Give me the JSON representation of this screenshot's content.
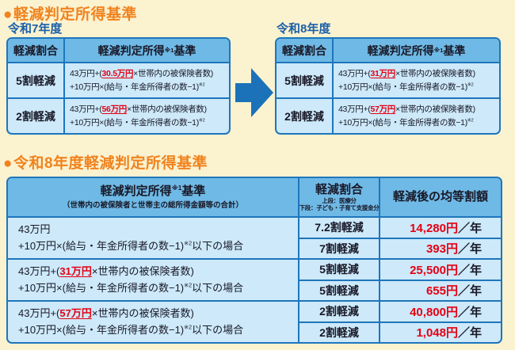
{
  "colors": {
    "background": "#FBF2D0",
    "accent_orange": "#F0831E",
    "year_blue": "#1A5FA8",
    "table_border": "#1E76BC",
    "header_bg": "#6FB9E6",
    "cell_bg": "#CDE9FA",
    "highlight_red": "#E60012"
  },
  "icons": {
    "bullet": "●",
    "arrow_right": "block-arrow-right"
  },
  "section_top": {
    "bullet": "●",
    "heading": "軽減判定所得基準",
    "tables": [
      {
        "year": "令和7年度",
        "headers": {
          "rate": "軽減割合",
          "criteria": [
            {
              "t": "軽減判定所得"
            },
            {
              "t": "※1",
              "c": "sup"
            },
            {
              "t": "基準"
            }
          ]
        },
        "rows": [
          {
            "rate": "5割軽減",
            "line1": [
              {
                "t": "43万円+("
              },
              {
                "t": "30.5万円",
                "c": "red u"
              },
              {
                "t": "×世帯内の被保険者数)"
              }
            ],
            "line2": [
              {
                "t": "+10万円×(給与・年金所得者の数−1)"
              },
              {
                "t": "※2",
                "c": "sup"
              }
            ]
          },
          {
            "rate": "2割軽減",
            "line1": [
              {
                "t": "43万円+("
              },
              {
                "t": "56万円",
                "c": "red u"
              },
              {
                "t": "×世帯内の被保険者数)"
              }
            ],
            "line2": [
              {
                "t": "+10万円×(給与・年金所得者の数−1)"
              },
              {
                "t": "※2",
                "c": "sup"
              }
            ]
          }
        ]
      },
      {
        "year": "令和8年度",
        "headers": {
          "rate": "軽減割合",
          "criteria": [
            {
              "t": "軽減判定所得"
            },
            {
              "t": "※1",
              "c": "sup"
            },
            {
              "t": "基準"
            }
          ]
        },
        "rows": [
          {
            "rate": "5割軽減",
            "line1": [
              {
                "t": "43万円+("
              },
              {
                "t": "31万円",
                "c": "red u"
              },
              {
                "t": "×世帯内の被保険者数)"
              }
            ],
            "line2": [
              {
                "t": "+10万円×(給与・年金所得者の数−1)"
              },
              {
                "t": "※2",
                "c": "sup"
              }
            ]
          },
          {
            "rate": "2割軽減",
            "line1": [
              {
                "t": "43万円+("
              },
              {
                "t": "57万円",
                "c": "red u"
              },
              {
                "t": "×世帯内の被保険者数)"
              }
            ],
            "line2": [
              {
                "t": "+10万円×(給与・年金所得者の数−1)"
              },
              {
                "t": "※2",
                "c": "sup"
              }
            ]
          }
        ]
      }
    ]
  },
  "section_bottom": {
    "bullet": "●",
    "heading": "令和8年度軽減判定所得基準",
    "header": {
      "criteria_title": [
        {
          "t": "軽減判定所得"
        },
        {
          "t": "※1",
          "c": "sup"
        },
        {
          "t": "基準"
        }
      ],
      "criteria_sub": "（世帯内の被保険者と世帯主の総所得金額等の合計）",
      "rate_title": "軽減割合",
      "rate_sub1": "上段：医療分",
      "rate_sub2": "下段：子ども・子育て支援金分",
      "amount_title": "軽減後の均等割額"
    },
    "groups": [
      {
        "line1": [
          {
            "t": "43万円"
          }
        ],
        "line2": [
          {
            "t": "+10万円×(給与・年金所得者の数−1)"
          },
          {
            "t": "※2",
            "c": "sup"
          },
          {
            "t": "以下の場合"
          }
        ],
        "subrows": [
          {
            "rate": "7.2割軽減",
            "amount": [
              {
                "t": "14,280円",
                "c": "red"
              },
              {
                "t": "／年"
              }
            ]
          },
          {
            "rate": "7割軽減",
            "amount": [
              {
                "t": "393円",
                "c": "red"
              },
              {
                "t": "／年"
              }
            ]
          }
        ]
      },
      {
        "line1": [
          {
            "t": "43万円+("
          },
          {
            "t": "31万円",
            "c": "red u"
          },
          {
            "t": "×世帯内の被保険者数)"
          }
        ],
        "line2": [
          {
            "t": "+10万円×(給与・年金所得者の数−1)"
          },
          {
            "t": "※2",
            "c": "sup"
          },
          {
            "t": "以下の場合"
          }
        ],
        "subrows": [
          {
            "rate": "5割軽減",
            "amount": [
              {
                "t": "25,500円",
                "c": "red"
              },
              {
                "t": "／年"
              }
            ]
          },
          {
            "rate": "5割軽減",
            "amount": [
              {
                "t": "655円",
                "c": "red"
              },
              {
                "t": "／年"
              }
            ]
          }
        ]
      },
      {
        "line1": [
          {
            "t": "43万円+("
          },
          {
            "t": "57万円",
            "c": "red u"
          },
          {
            "t": "×世帯内の被保険者数)"
          }
        ],
        "line2": [
          {
            "t": "+10万円×(給与・年金所得者の数−1)"
          },
          {
            "t": "※2",
            "c": "sup"
          },
          {
            "t": "以下の場合"
          }
        ],
        "subrows": [
          {
            "rate": "2割軽減",
            "amount": [
              {
                "t": "40,800円",
                "c": "red"
              },
              {
                "t": "／年"
              }
            ]
          },
          {
            "rate": "2割軽減",
            "amount": [
              {
                "t": "1,048円",
                "c": "red"
              },
              {
                "t": "／年"
              }
            ]
          }
        ]
      }
    ]
  }
}
